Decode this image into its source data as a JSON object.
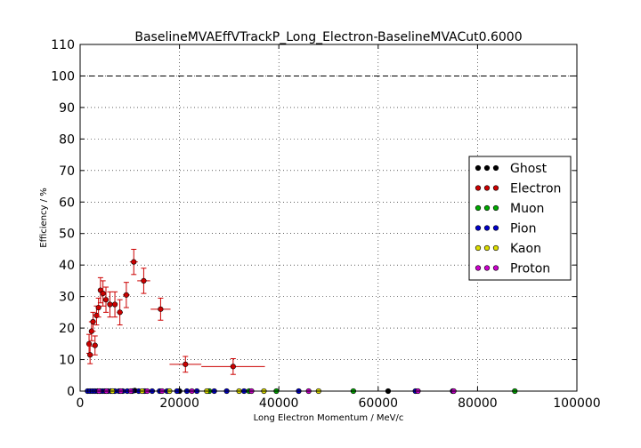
{
  "chart_data": {
    "type": "scatter",
    "title": "BaselineMVAEffVTrackP_Long_Electron-BaselineMVACut0.6000",
    "xlabel": "Long Electron Momentum / MeV/c",
    "ylabel": "Efficiency / %",
    "xlim": [
      0,
      100000
    ],
    "ylim": [
      0,
      110
    ],
    "xticks": [
      "0",
      "20000",
      "40000",
      "60000",
      "80000",
      "100000"
    ],
    "yticks": [
      "0",
      "10",
      "20",
      "30",
      "40",
      "50",
      "60",
      "70",
      "80",
      "90",
      "100",
      "110"
    ],
    "grid": true,
    "reference_line": 100,
    "legend_position": "center-right",
    "series": [
      {
        "name": "Ghost",
        "color": "#000000",
        "points": [
          {
            "x": 11000,
            "y": 0.2
          },
          {
            "x": 20000,
            "y": 0
          },
          {
            "x": 62000,
            "y": 0
          }
        ]
      },
      {
        "name": "Electron",
        "color": "#cc0000",
        "points": [
          {
            "x": 1800,
            "y": 15.0,
            "xerr": 300,
            "yerr": 3.0
          },
          {
            "x": 2000,
            "y": 11.5,
            "xerr": 300,
            "yerr": 2.8
          },
          {
            "x": 2300,
            "y": 19.0,
            "xerr": 300,
            "yerr": 3.0
          },
          {
            "x": 2600,
            "y": 22.0,
            "xerr": 300,
            "yerr": 3.0
          },
          {
            "x": 3000,
            "y": 14.5,
            "xerr": 300,
            "yerr": 3.0
          },
          {
            "x": 3300,
            "y": 24.0,
            "xerr": 300,
            "yerr": 3.0
          },
          {
            "x": 3700,
            "y": 26.5,
            "xerr": 300,
            "yerr": 3.0
          },
          {
            "x": 4100,
            "y": 32.0,
            "xerr": 300,
            "yerr": 4.0
          },
          {
            "x": 4600,
            "y": 31.0,
            "xerr": 400,
            "yerr": 4.0
          },
          {
            "x": 5200,
            "y": 29.0,
            "xerr": 400,
            "yerr": 4.0
          },
          {
            "x": 6000,
            "y": 27.5,
            "xerr": 500,
            "yerr": 4.0
          },
          {
            "x": 7000,
            "y": 27.5,
            "xerr": 500,
            "yerr": 4.0
          },
          {
            "x": 8000,
            "y": 25.0,
            "xerr": 600,
            "yerr": 4.0
          },
          {
            "x": 9300,
            "y": 30.5,
            "xerr": 700,
            "yerr": 4.0
          },
          {
            "x": 10800,
            "y": 41.0,
            "xerr": 800,
            "yerr": 4.0
          },
          {
            "x": 12800,
            "y": 35.0,
            "xerr": 1300,
            "yerr": 4.0
          },
          {
            "x": 16200,
            "y": 26.0,
            "xerr": 2000,
            "yerr": 3.5
          },
          {
            "x": 21200,
            "y": 8.5,
            "xerr": 3200,
            "yerr": 2.5
          },
          {
            "x": 30800,
            "y": 7.8,
            "xerr": 6400,
            "yerr": 2.5
          }
        ]
      },
      {
        "name": "Muon",
        "color": "#00aa00",
        "points": [
          {
            "x": 26000,
            "y": 0
          },
          {
            "x": 34000,
            "y": 0
          },
          {
            "x": 39500,
            "y": 0
          },
          {
            "x": 55000,
            "y": 0
          },
          {
            "x": 87500,
            "y": 0
          }
        ]
      },
      {
        "name": "Pion",
        "color": "#0000cc",
        "points": [
          {
            "x": 1500,
            "y": 0
          },
          {
            "x": 2000,
            "y": 0
          },
          {
            "x": 2500,
            "y": 0
          },
          {
            "x": 3000,
            "y": 0
          },
          {
            "x": 3500,
            "y": 0
          },
          {
            "x": 4000,
            "y": 0
          },
          {
            "x": 4500,
            "y": 0
          },
          {
            "x": 5000,
            "y": 0
          },
          {
            "x": 5600,
            "y": 0
          },
          {
            "x": 6200,
            "y": 0
          },
          {
            "x": 7000,
            "y": 0
          },
          {
            "x": 7800,
            "y": 0
          },
          {
            "x": 8600,
            "y": 0
          },
          {
            "x": 9500,
            "y": 0
          },
          {
            "x": 10500,
            "y": 0
          },
          {
            "x": 11800,
            "y": 0
          },
          {
            "x": 13000,
            "y": 0
          },
          {
            "x": 14500,
            "y": 0
          },
          {
            "x": 16000,
            "y": 0
          },
          {
            "x": 17500,
            "y": 0
          },
          {
            "x": 19500,
            "y": 0
          },
          {
            "x": 21500,
            "y": 0
          },
          {
            "x": 23500,
            "y": 0
          },
          {
            "x": 27000,
            "y": 0
          },
          {
            "x": 29500,
            "y": 0
          },
          {
            "x": 33000,
            "y": 0
          },
          {
            "x": 44000,
            "y": 0
          },
          {
            "x": 67500,
            "y": 0
          },
          {
            "x": 75000,
            "y": 0
          }
        ]
      },
      {
        "name": "Kaon",
        "color": "#dddd00",
        "points": [
          {
            "x": 6500,
            "y": 0
          },
          {
            "x": 12500,
            "y": 0
          },
          {
            "x": 18000,
            "y": 0
          },
          {
            "x": 25500,
            "y": 0
          },
          {
            "x": 32000,
            "y": 0
          },
          {
            "x": 37000,
            "y": 0
          },
          {
            "x": 48000,
            "y": 0
          }
        ]
      },
      {
        "name": "Proton",
        "color": "#cc00cc",
        "points": [
          {
            "x": 3800,
            "y": 0
          },
          {
            "x": 5300,
            "y": 0
          },
          {
            "x": 8200,
            "y": 0
          },
          {
            "x": 10200,
            "y": 0
          },
          {
            "x": 13500,
            "y": 0
          },
          {
            "x": 16500,
            "y": 0
          },
          {
            "x": 22500,
            "y": 0
          },
          {
            "x": 34500,
            "y": 0
          },
          {
            "x": 46000,
            "y": 0
          },
          {
            "x": 68000,
            "y": 0
          },
          {
            "x": 75200,
            "y": 0
          }
        ]
      }
    ]
  }
}
